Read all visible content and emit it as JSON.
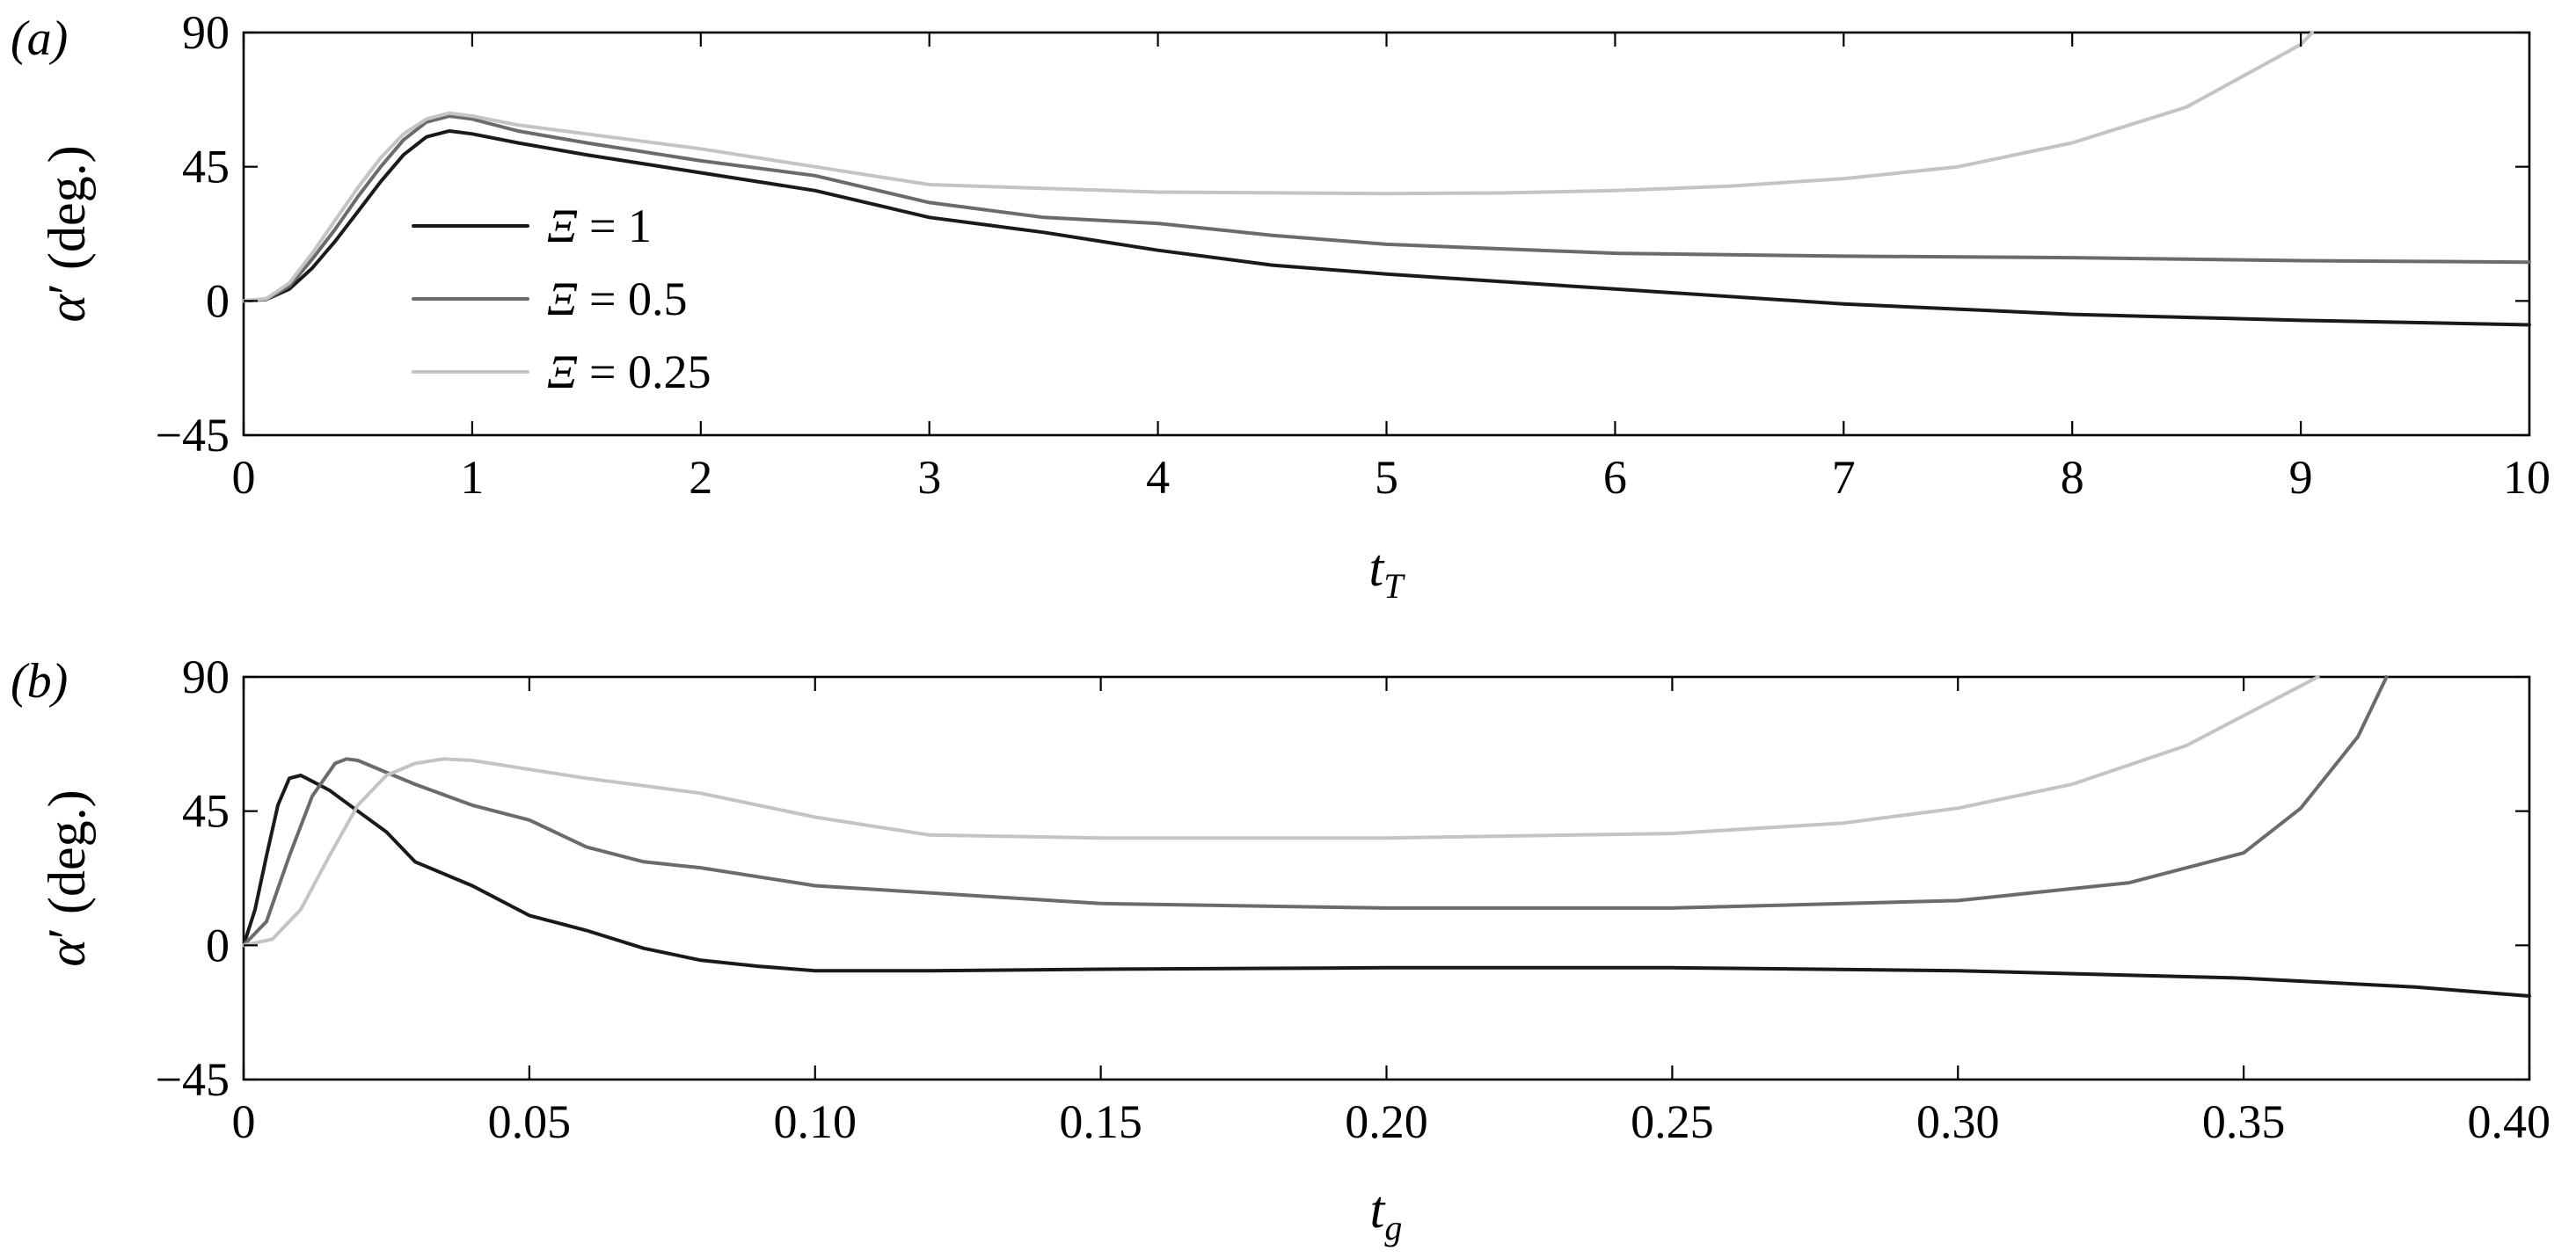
{
  "chart_data": [
    {
      "type": "line",
      "panel_label": "(a)",
      "xlabel_main": "t",
      "xlabel_sub": "T",
      "ylabel_alpha": "α",
      "ylabel_prime": "′",
      "ylabel_unit": "(deg.)",
      "xlim": [
        0,
        10
      ],
      "ylim": [
        -45,
        90
      ],
      "xticks": [
        "0",
        "1",
        "2",
        "3",
        "4",
        "5",
        "6",
        "7",
        "8",
        "9",
        "10"
      ],
      "yticks": [
        "90",
        "45",
        "0",
        "−45"
      ],
      "ytick_values": [
        90,
        45,
        0,
        -45
      ],
      "legend": {
        "position": "left",
        "entries": [
          {
            "symbol": "Ξ",
            "rel": " = 1"
          },
          {
            "symbol": "Ξ",
            "rel": " = 0.5"
          },
          {
            "symbol": "Ξ",
            "rel": " = 0.25"
          }
        ]
      },
      "series": [
        {
          "name": "Ξ = 1",
          "color": "#1a1a1a",
          "x": [
            0,
            0.1,
            0.2,
            0.3,
            0.4,
            0.5,
            0.6,
            0.7,
            0.8,
            0.9,
            1.0,
            1.2,
            1.5,
            2.0,
            2.5,
            3.0,
            3.5,
            4.0,
            4.5,
            5.0,
            5.5,
            6.0,
            7.0,
            8.0,
            9.0,
            10.0
          ],
          "y": [
            0,
            0.5,
            4,
            11,
            20,
            30,
            40,
            49,
            55,
            57,
            56,
            53,
            49,
            43,
            37,
            28,
            23,
            17,
            12,
            9,
            6.5,
            4,
            -1,
            -4.5,
            -6.5,
            -8
          ]
        },
        {
          "name": "Ξ = 0.5",
          "color": "#6b6b6b",
          "x": [
            0,
            0.1,
            0.2,
            0.3,
            0.4,
            0.5,
            0.6,
            0.7,
            0.8,
            0.9,
            1.0,
            1.2,
            1.5,
            2.0,
            2.5,
            3.0,
            3.5,
            4.0,
            4.5,
            5.0,
            6.0,
            7.0,
            8.0,
            9.0,
            10.0
          ],
          "y": [
            0,
            0.5,
            5,
            14,
            24,
            35,
            45,
            54,
            60,
            62,
            61,
            57,
            53,
            47,
            42,
            33,
            28,
            26,
            22,
            19,
            16,
            15,
            14.5,
            13.5,
            13
          ]
        },
        {
          "name": "Ξ = 0.25",
          "color": "#c4c4c4",
          "x": [
            0,
            0.1,
            0.2,
            0.3,
            0.4,
            0.5,
            0.6,
            0.7,
            0.8,
            0.9,
            1.0,
            1.2,
            1.5,
            2.0,
            2.5,
            3.0,
            4.0,
            5.0,
            5.5,
            6.0,
            6.5,
            7.0,
            7.5,
            8.0,
            8.5,
            9.0,
            9.05
          ],
          "y": [
            0,
            0.8,
            6,
            16,
            27,
            38,
            48,
            56,
            61,
            63,
            62,
            59,
            56,
            51,
            45,
            39,
            36.5,
            36,
            36.2,
            37,
            38.5,
            41,
            45,
            53,
            65,
            86,
            90
          ]
        }
      ]
    },
    {
      "type": "line",
      "panel_label": "(b)",
      "xlabel_main": "t",
      "xlabel_sub": "g",
      "ylabel_alpha": "α",
      "ylabel_prime": "′",
      "ylabel_unit": "(deg.)",
      "xlim": [
        0,
        0.4
      ],
      "ylim": [
        -45,
        90
      ],
      "xticks": [
        "0",
        "0.05",
        "0.10",
        "0.15",
        "0.20",
        "0.25",
        "0.30",
        "0.35",
        "0.40"
      ],
      "yticks": [
        "90",
        "45",
        "0",
        "−45"
      ],
      "ytick_values": [
        90,
        45,
        0,
        -45
      ],
      "series": [
        {
          "name": "Ξ = 1",
          "color": "#1a1a1a",
          "x": [
            0,
            0.002,
            0.004,
            0.006,
            0.008,
            0.01,
            0.012,
            0.015,
            0.02,
            0.025,
            0.03,
            0.04,
            0.05,
            0.06,
            0.07,
            0.08,
            0.09,
            0.1,
            0.12,
            0.15,
            0.2,
            0.25,
            0.3,
            0.35,
            0.38,
            0.4
          ],
          "y": [
            0,
            12,
            30,
            47,
            56,
            57,
            55,
            52,
            45,
            38,
            28,
            20,
            10,
            5,
            -1,
            -5,
            -7,
            -8.5,
            -8.5,
            -8,
            -7.5,
            -7.5,
            -8.5,
            -11,
            -14,
            -17
          ]
        },
        {
          "name": "Ξ = 0.5",
          "color": "#6b6b6b",
          "x": [
            0,
            0.004,
            0.008,
            0.012,
            0.016,
            0.018,
            0.02,
            0.025,
            0.03,
            0.04,
            0.05,
            0.06,
            0.07,
            0.08,
            0.1,
            0.15,
            0.2,
            0.25,
            0.3,
            0.33,
            0.35,
            0.36,
            0.37,
            0.375
          ],
          "y": [
            0,
            8,
            30,
            50,
            61,
            62.5,
            62,
            58,
            54,
            47,
            42,
            33,
            28,
            26,
            20,
            14,
            12.5,
            12.5,
            15,
            21,
            31,
            46,
            70,
            90
          ]
        },
        {
          "name": "Ξ = 0.25",
          "color": "#c4c4c4",
          "x": [
            0,
            0.005,
            0.01,
            0.015,
            0.02,
            0.025,
            0.03,
            0.035,
            0.04,
            0.05,
            0.06,
            0.08,
            0.1,
            0.12,
            0.15,
            0.2,
            0.25,
            0.28,
            0.3,
            0.32,
            0.34,
            0.35,
            0.36,
            0.363
          ],
          "y": [
            0,
            2,
            12,
            30,
            47,
            57,
            61,
            62.5,
            62,
            59,
            56,
            51,
            43,
            37,
            36,
            36,
            37.5,
            41,
            46,
            54,
            67,
            77,
            87,
            90
          ]
        }
      ]
    }
  ]
}
